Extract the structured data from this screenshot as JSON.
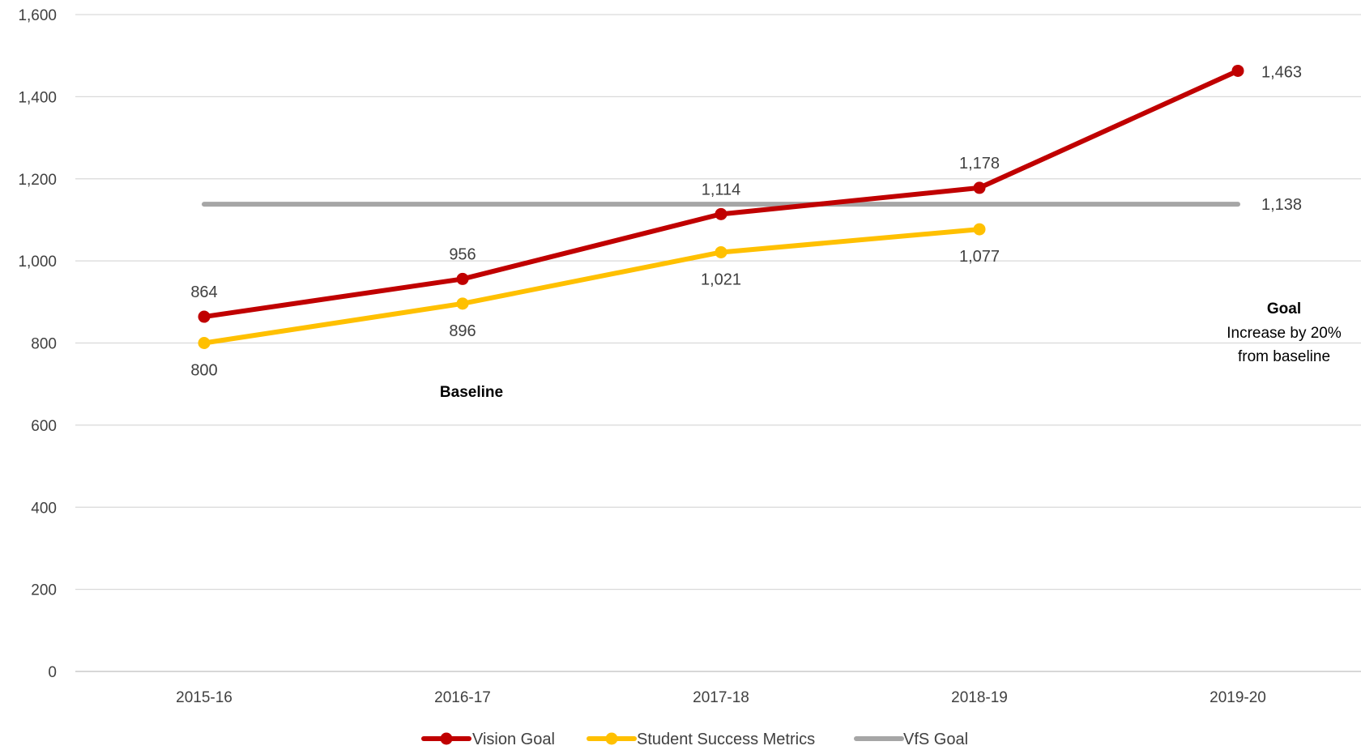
{
  "chart_data": {
    "type": "line",
    "categories": [
      "2015-16",
      "2016-17",
      "2017-18",
      "2018-19",
      "2019-20"
    ],
    "ylim": [
      0,
      1600
    ],
    "yticks": [
      0,
      200,
      400,
      600,
      800,
      1000,
      1200,
      1400,
      1600
    ],
    "ytick_labels": [
      "0",
      "200",
      "400",
      "600",
      "800",
      "1,000",
      "1,200",
      "1,400",
      "1,600"
    ],
    "grid": "horizontal",
    "legend_position": "bottom",
    "series": [
      {
        "name": "Vision Goal",
        "color": "#C00000",
        "values": [
          864,
          956,
          1114,
          1178,
          1463
        ],
        "labels": [
          "864",
          "956",
          "1,114",
          "1,178",
          "1,463"
        ]
      },
      {
        "name": "Student Success Metrics",
        "color": "#FFC000",
        "values": [
          800,
          896,
          1021,
          1077,
          null
        ],
        "labels": [
          "800",
          "896",
          "1,021",
          "1,077",
          ""
        ]
      },
      {
        "name": "VfS Goal",
        "color": "#A6A6A6",
        "values": [
          1138,
          1138,
          1138,
          1138,
          1138
        ],
        "labels": [
          "",
          "",
          "",
          "",
          "1,138"
        ]
      }
    ],
    "annotations": {
      "baseline": "Baseline",
      "goal_title": "Goal",
      "goal_line1": "Increase by 20%",
      "goal_line2": "from baseline"
    }
  }
}
